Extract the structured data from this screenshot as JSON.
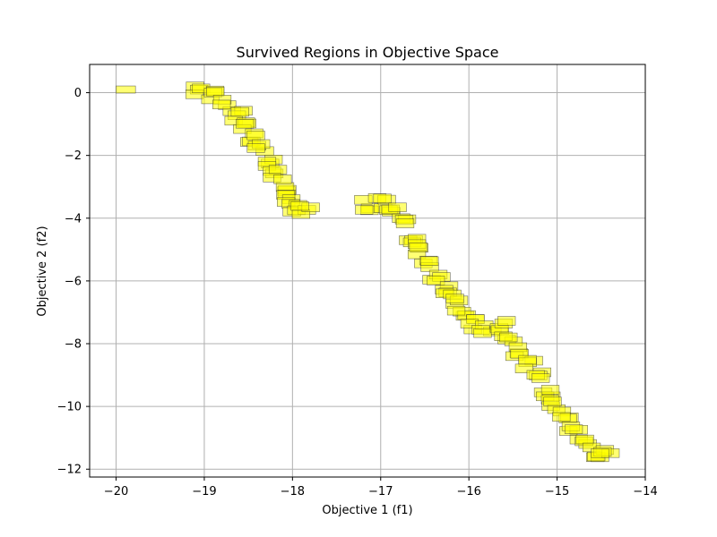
{
  "chart_data": {
    "type": "scatter",
    "title": "Survived Regions in Objective Space",
    "xlabel": "Objective 1 (f1)",
    "ylabel": "Objective 2 (f2)",
    "xlim": [
      -20.3,
      -14.0
    ],
    "ylim": [
      -12.25,
      0.9
    ],
    "xticks": [
      -20,
      -19,
      -18,
      -17,
      -16,
      -15,
      -14
    ],
    "yticks": [
      0,
      -2,
      -4,
      -6,
      -8,
      -10,
      -12
    ],
    "xtick_labels": [
      "−20",
      "−19",
      "−18",
      "−17",
      "−16",
      "−15",
      "−14"
    ],
    "ytick_labels": [
      "0",
      "−2",
      "−4",
      "−6",
      "−8",
      "−10",
      "−12"
    ],
    "grid": true,
    "marker": "rectangle",
    "fill_color": "#ffff00",
    "edge_color": "#333333",
    "series": [
      {
        "region_centers": [
          [
            -19.89,
            0.1
          ],
          [
            -19.05,
            0.1
          ],
          [
            -18.9,
            -0.1
          ],
          [
            -18.75,
            -0.4
          ],
          [
            -18.62,
            -0.7
          ],
          [
            -18.52,
            -1.05
          ],
          [
            -18.43,
            -1.4
          ],
          [
            -18.35,
            -1.8
          ],
          [
            -18.28,
            -2.2
          ],
          [
            -18.2,
            -2.6
          ],
          [
            -18.12,
            -2.95
          ],
          [
            -18.04,
            -3.3
          ],
          [
            -17.95,
            -3.6
          ],
          [
            -17.85,
            -3.75
          ],
          [
            -17.15,
            -3.6
          ],
          [
            -16.98,
            -3.55
          ],
          [
            -16.85,
            -3.8
          ],
          [
            -16.72,
            -4.2
          ],
          [
            -16.62,
            -4.6
          ],
          [
            -16.53,
            -5.0
          ],
          [
            -16.45,
            -5.4
          ],
          [
            -16.37,
            -5.8
          ],
          [
            -16.28,
            -6.2
          ],
          [
            -16.18,
            -6.6
          ],
          [
            -16.08,
            -7.0
          ],
          [
            -15.95,
            -7.35
          ],
          [
            -15.8,
            -7.6
          ],
          [
            -15.62,
            -7.4
          ],
          [
            -15.55,
            -7.9
          ],
          [
            -15.42,
            -8.3
          ],
          [
            -15.32,
            -8.7
          ],
          [
            -15.22,
            -9.1
          ],
          [
            -15.12,
            -9.5
          ],
          [
            -15.02,
            -9.9
          ],
          [
            -14.92,
            -10.3
          ],
          [
            -14.82,
            -10.7
          ],
          [
            -14.7,
            -11.1
          ],
          [
            -14.55,
            -11.45
          ],
          [
            -14.45,
            -11.55
          ]
        ]
      }
    ]
  }
}
